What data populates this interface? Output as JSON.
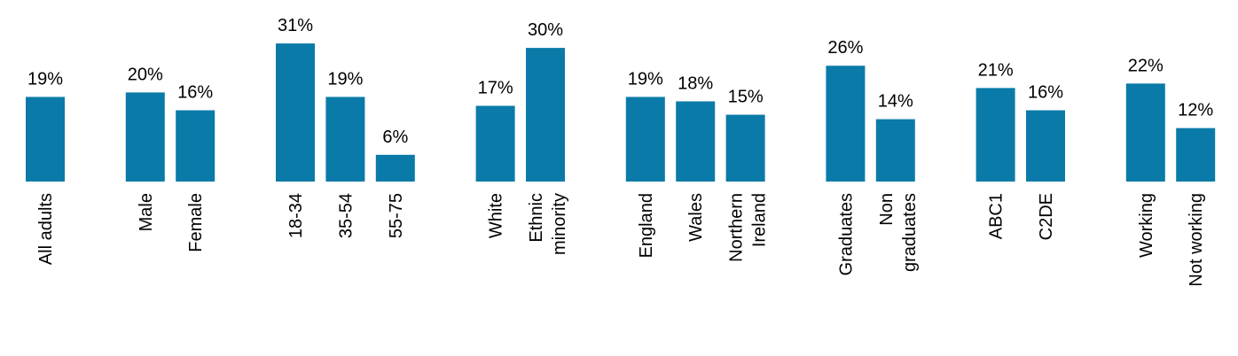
{
  "chart_data": {
    "type": "bar",
    "color": "#0a7ba8",
    "categories": [
      "All adults",
      null,
      "Male",
      "Female",
      null,
      "18-34",
      "35-54",
      "55-75",
      null,
      "White",
      "Ethnic\nminority",
      null,
      "England",
      "Wales",
      "Northern\nIreland",
      null,
      "Graduates",
      "Non\ngraduates",
      null,
      "ABC1",
      "C2DE",
      null,
      "Working",
      "Not working"
    ],
    "values": [
      19,
      null,
      20,
      16,
      null,
      31,
      19,
      6,
      null,
      17,
      30,
      null,
      19,
      18,
      15,
      null,
      26,
      14,
      null,
      21,
      16,
      null,
      22,
      12
    ],
    "value_labels": [
      "19%",
      null,
      "20%",
      "16%",
      null,
      "31%",
      "19%",
      "6%",
      null,
      "17%",
      "30%",
      null,
      "19%",
      "18%",
      "15%",
      null,
      "26%",
      "14%",
      null,
      "21%",
      "16%",
      null,
      "22%",
      "12%"
    ]
  }
}
